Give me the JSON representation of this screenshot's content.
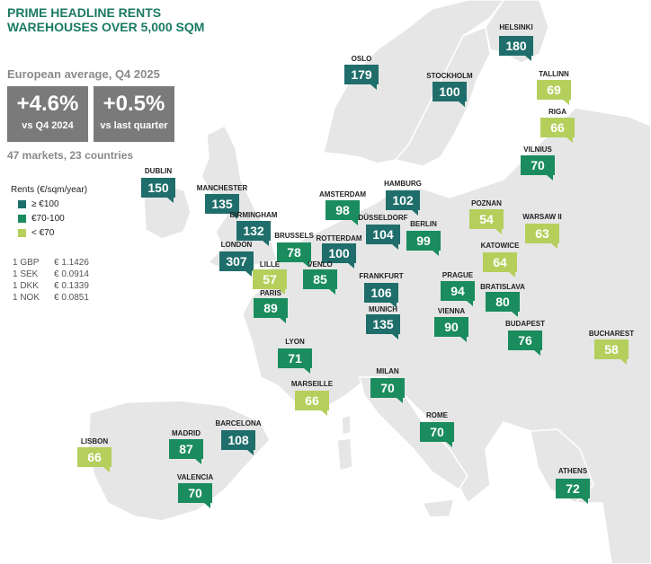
{
  "title_line1": "PRIME HEADLINE RENTS",
  "title_line2": "WAREHOUSES OVER 5,000 SQM",
  "avg_label": "European average, Q4 2025",
  "kpis": [
    {
      "value": "+4.6%",
      "sub": "vs Q4 2024"
    },
    {
      "value": "+0.5%",
      "sub": "vs last quarter"
    }
  ],
  "markets": "47 markets, 23 countries",
  "legend": {
    "title": "Rents (€/sqm/year)",
    "items": [
      {
        "label": "≥ €100",
        "color": "#1f6e6b"
      },
      {
        "label": "€70-100",
        "color": "#1a8c5e"
      },
      {
        "label": "< €70",
        "color": "#b4cf5c"
      }
    ]
  },
  "fx": [
    {
      "a": "1 GBP",
      "b": "€ 1.1426"
    },
    {
      "a": "1 SEK",
      "b": "€ 0.0914"
    },
    {
      "a": "1 DKK",
      "b": "€ 0.1339"
    },
    {
      "a": "1 NOK",
      "b": "€ 0.0851"
    }
  ],
  "colors": {
    "high": "#1f6e6b",
    "mid": "#1a8c5e",
    "low": "#b4cf5c",
    "land": "#e6e6e6",
    "sea": "#ffffff",
    "title": "#1a7a62"
  },
  "cities": [
    {
      "name": "HELSINKI",
      "value": 180,
      "tier": "high"
    },
    {
      "name": "OSLO",
      "value": 179,
      "tier": "high"
    },
    {
      "name": "STOCKHOLM",
      "value": 100,
      "tier": "high"
    },
    {
      "name": "TALLINN",
      "value": 69,
      "tier": "low"
    },
    {
      "name": "RIGA",
      "value": 66,
      "tier": "low"
    },
    {
      "name": "VILNIUS",
      "value": 70,
      "tier": "mid"
    },
    {
      "name": "DUBLIN",
      "value": 150,
      "tier": "high"
    },
    {
      "name": "MANCHESTER",
      "value": 135,
      "tier": "high"
    },
    {
      "name": "BIRMINGHAM",
      "value": 132,
      "tier": "high"
    },
    {
      "name": "LONDON",
      "value": 307,
      "tier": "high"
    },
    {
      "name": "AMSTERDAM",
      "value": 98,
      "tier": "mid"
    },
    {
      "name": "HAMBURG",
      "value": 102,
      "tier": "high"
    },
    {
      "name": "DÜSSELDORF",
      "value": 104,
      "tier": "high"
    },
    {
      "name": "BERLIN",
      "value": 99,
      "tier": "mid"
    },
    {
      "name": "BRUSSELS",
      "value": 78,
      "tier": "mid"
    },
    {
      "name": "ROTTERDAM",
      "value": 100,
      "tier": "high"
    },
    {
      "name": "LILLE",
      "value": 57,
      "tier": "low"
    },
    {
      "name": "VENLO",
      "value": 85,
      "tier": "mid"
    },
    {
      "name": "POZNAN",
      "value": 54,
      "tier": "low"
    },
    {
      "name": "WARSAW II",
      "value": 63,
      "tier": "low"
    },
    {
      "name": "KATOWICE",
      "value": 64,
      "tier": "low"
    },
    {
      "name": "PARIS",
      "value": 89,
      "tier": "mid"
    },
    {
      "name": "FRANKFURT",
      "value": 106,
      "tier": "high"
    },
    {
      "name": "PRAGUE",
      "value": 94,
      "tier": "mid"
    },
    {
      "name": "BRATISLAVA",
      "value": 80,
      "tier": "mid"
    },
    {
      "name": "MUNICH",
      "value": 135,
      "tier": "high"
    },
    {
      "name": "VIENNA",
      "value": 90,
      "tier": "mid"
    },
    {
      "name": "BUDAPEST",
      "value": 76,
      "tier": "mid"
    },
    {
      "name": "BUCHAREST",
      "value": 58,
      "tier": "low"
    },
    {
      "name": "LYON",
      "value": 71,
      "tier": "mid"
    },
    {
      "name": "MARSEILLE",
      "value": 66,
      "tier": "low"
    },
    {
      "name": "MILAN",
      "value": 70,
      "tier": "mid"
    },
    {
      "name": "ROME",
      "value": 70,
      "tier": "mid"
    },
    {
      "name": "LISBON",
      "value": 66,
      "tier": "low"
    },
    {
      "name": "MADRID",
      "value": 87,
      "tier": "mid"
    },
    {
      "name": "BARCELONA",
      "value": 108,
      "tier": "high"
    },
    {
      "name": "VALENCIA",
      "value": 70,
      "tier": "mid"
    },
    {
      "name": "ATHENS",
      "value": 72,
      "tier": "mid"
    }
  ]
}
